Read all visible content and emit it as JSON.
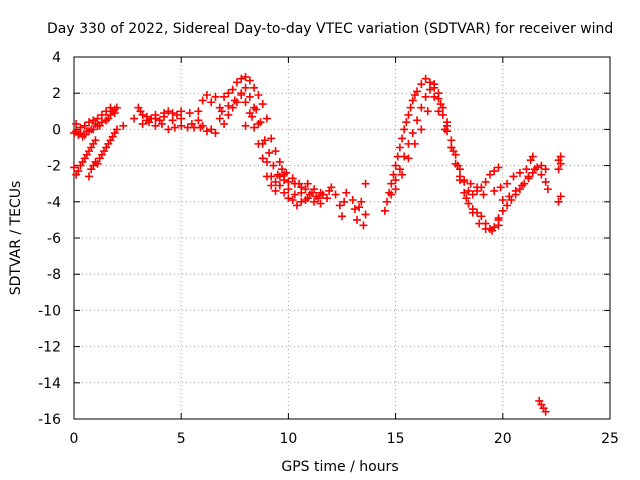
{
  "chart_data": {
    "type": "scatter",
    "title": "Day 330 of 2022, Sidereal Day-to-day VTEC variation (SDTVAR) for receiver wind",
    "xlabel": "GPS time / hours",
    "ylabel": "SDTVAR / TECUs",
    "xlim": [
      0,
      25
    ],
    "ylim": [
      -16,
      4
    ],
    "xticks": [
      0,
      5,
      10,
      15,
      20,
      25
    ],
    "yticks": [
      4,
      2,
      0,
      -2,
      -4,
      -6,
      -8,
      -10,
      -12,
      -14,
      -16
    ],
    "grid": true,
    "marker": "+",
    "series_color": "#ff0000",
    "series": [
      {
        "name": "SDTVAR",
        "points": [
          [
            0.0,
            -0.2
          ],
          [
            0.1,
            0.3
          ],
          [
            0.2,
            -0.3
          ],
          [
            0.3,
            0.1
          ],
          [
            0.4,
            -0.4
          ],
          [
            0.5,
            0.2
          ],
          [
            0.6,
            -0.1
          ],
          [
            0.7,
            0.4
          ],
          [
            0.8,
            0.0
          ],
          [
            0.9,
            0.5
          ],
          [
            1.0,
            0.3
          ],
          [
            1.1,
            0.6
          ],
          [
            1.2,
            0.2
          ],
          [
            1.3,
            0.8
          ],
          [
            1.5,
            1.0
          ],
          [
            1.6,
            0.6
          ],
          [
            1.7,
            1.2
          ],
          [
            1.8,
            1.0
          ],
          [
            1.9,
            0.9
          ],
          [
            2.0,
            1.2
          ],
          [
            0.1,
            -0.1
          ],
          [
            0.3,
            -0.2
          ],
          [
            0.5,
            -0.3
          ],
          [
            0.7,
            -0.1
          ],
          [
            0.9,
            0.0
          ],
          [
            1.1,
            0.2
          ],
          [
            1.3,
            0.4
          ],
          [
            1.5,
            0.5
          ],
          [
            1.7,
            0.8
          ],
          [
            1.9,
            1.1
          ],
          [
            0.0,
            -2.1
          ],
          [
            0.1,
            -2.5
          ],
          [
            0.2,
            -2.3
          ],
          [
            0.3,
            -2.0
          ],
          [
            0.4,
            -1.8
          ],
          [
            0.5,
            -1.6
          ],
          [
            0.6,
            -1.4
          ],
          [
            0.7,
            -1.2
          ],
          [
            0.8,
            -1.0
          ],
          [
            0.9,
            -0.8
          ],
          [
            1.0,
            -0.6
          ],
          [
            0.7,
            -2.6
          ],
          [
            0.8,
            -2.2
          ],
          [
            0.9,
            -2.0
          ],
          [
            1.0,
            -1.8
          ],
          [
            1.1,
            -1.9
          ],
          [
            1.2,
            -1.6
          ],
          [
            1.3,
            -1.4
          ],
          [
            1.4,
            -1.2
          ],
          [
            1.5,
            -1.0
          ],
          [
            1.6,
            -0.8
          ],
          [
            1.7,
            -0.6
          ],
          [
            1.8,
            -0.4
          ],
          [
            1.9,
            -0.2
          ],
          [
            2.0,
            0.0
          ],
          [
            2.3,
            0.2
          ],
          [
            2.8,
            0.6
          ],
          [
            3.0,
            1.2
          ],
          [
            3.1,
            1.0
          ],
          [
            3.2,
            0.8
          ],
          [
            3.4,
            0.5
          ],
          [
            3.6,
            0.6
          ],
          [
            3.8,
            0.8
          ],
          [
            4.0,
            0.5
          ],
          [
            4.2,
            0.9
          ],
          [
            4.4,
            1.0
          ],
          [
            4.6,
            0.9
          ],
          [
            4.8,
            0.8
          ],
          [
            5.0,
            1.0
          ],
          [
            3.2,
            0.3
          ],
          [
            3.5,
            0.4
          ],
          [
            3.8,
            0.2
          ],
          [
            4.1,
            0.3
          ],
          [
            4.4,
            0.0
          ],
          [
            4.7,
            0.1
          ],
          [
            5.0,
            0.2
          ],
          [
            5.3,
            0.1
          ],
          [
            5.6,
            0.1
          ],
          [
            5.9,
            0.1
          ],
          [
            3.4,
            0.7
          ],
          [
            3.8,
            0.6
          ],
          [
            4.2,
            0.7
          ],
          [
            4.6,
            0.5
          ],
          [
            5.0,
            0.6
          ],
          [
            5.4,
            0.9
          ],
          [
            5.8,
            1.0
          ],
          [
            6.0,
            1.6
          ],
          [
            6.2,
            1.9
          ],
          [
            6.4,
            1.5
          ],
          [
            6.6,
            1.8
          ],
          [
            6.8,
            1.2
          ],
          [
            6.9,
            1.0
          ],
          [
            5.5,
            0.3
          ],
          [
            5.8,
            0.5
          ],
          [
            6.0,
            0.2
          ],
          [
            6.2,
            -0.1
          ],
          [
            6.4,
            0.0
          ],
          [
            6.6,
            -0.2
          ],
          [
            7.0,
            1.8
          ],
          [
            7.2,
            2.0
          ],
          [
            7.4,
            2.2
          ],
          [
            7.6,
            2.6
          ],
          [
            7.8,
            2.8
          ],
          [
            8.0,
            2.9
          ],
          [
            8.2,
            2.7
          ],
          [
            8.4,
            2.3
          ],
          [
            8.6,
            1.9
          ],
          [
            8.8,
            1.4
          ],
          [
            9.0,
            0.6
          ],
          [
            9.2,
            -0.5
          ],
          [
            9.4,
            -1.2
          ],
          [
            9.6,
            -1.8
          ],
          [
            9.8,
            -2.5
          ],
          [
            10.0,
            -3.3
          ],
          [
            10.2,
            -3.9
          ],
          [
            10.4,
            -4.2
          ],
          [
            10.6,
            -4.0
          ],
          [
            10.8,
            -3.9
          ],
          [
            11.0,
            -3.6
          ],
          [
            11.3,
            -3.7
          ],
          [
            11.6,
            -3.6
          ],
          [
            11.9,
            -3.4
          ],
          [
            12.0,
            -3.2
          ],
          [
            7.2,
            1.3
          ],
          [
            7.5,
            1.6
          ],
          [
            7.8,
            1.9
          ],
          [
            8.0,
            2.3
          ],
          [
            8.2,
            1.8
          ],
          [
            8.4,
            1.2
          ],
          [
            8.6,
            0.3
          ],
          [
            8.8,
            -0.8
          ],
          [
            9.0,
            -1.8
          ],
          [
            9.2,
            -2.6
          ],
          [
            9.4,
            -2.9
          ],
          [
            9.6,
            -2.6
          ],
          [
            9.8,
            -2.8
          ],
          [
            10.0,
            -2.9
          ],
          [
            10.3,
            -3.0
          ],
          [
            10.6,
            -3.2
          ],
          [
            10.9,
            -3.0
          ],
          [
            11.2,
            -3.3
          ],
          [
            11.5,
            -3.5
          ],
          [
            11.8,
            -3.8
          ],
          [
            6.8,
            0.6
          ],
          [
            7.0,
            0.3
          ],
          [
            7.2,
            0.8
          ],
          [
            7.4,
            1.2
          ],
          [
            7.6,
            1.5
          ],
          [
            7.8,
            2.0
          ],
          [
            8.0,
            1.5
          ],
          [
            8.2,
            0.9
          ],
          [
            8.4,
            0.1
          ],
          [
            8.6,
            -0.8
          ],
          [
            8.8,
            -1.6
          ],
          [
            9.0,
            -2.6
          ],
          [
            9.2,
            -3.1
          ],
          [
            9.4,
            -3.4
          ],
          [
            9.6,
            -3.1
          ],
          [
            9.8,
            -3.5
          ],
          [
            10.0,
            -3.8
          ],
          [
            10.3,
            -3.6
          ],
          [
            10.6,
            -3.5
          ],
          [
            10.9,
            -3.8
          ],
          [
            11.2,
            -4.0
          ],
          [
            11.5,
            -4.1
          ],
          [
            8.0,
            0.2
          ],
          [
            8.3,
            0.7
          ],
          [
            8.5,
            1.1
          ],
          [
            8.7,
            0.4
          ],
          [
            8.9,
            -0.6
          ],
          [
            9.1,
            -1.3
          ],
          [
            9.3,
            -2.0
          ],
          [
            9.5,
            -2.5
          ],
          [
            9.7,
            -2.2
          ],
          [
            9.9,
            -2.4
          ],
          [
            10.2,
            -2.7
          ],
          [
            10.5,
            -3.0
          ],
          [
            10.8,
            -3.3
          ],
          [
            11.1,
            -3.5
          ],
          [
            11.4,
            -3.8
          ],
          [
            12.2,
            -3.6
          ],
          [
            12.4,
            -4.2
          ],
          [
            12.5,
            -4.8
          ],
          [
            12.6,
            -4.0
          ],
          [
            12.7,
            -3.5
          ],
          [
            13.0,
            -3.9
          ],
          [
            13.1,
            -4.4
          ],
          [
            13.2,
            -5.0
          ],
          [
            13.3,
            -4.3
          ],
          [
            13.4,
            -4.0
          ],
          [
            13.5,
            -5.3
          ],
          [
            13.6,
            -3.0
          ],
          [
            13.6,
            -4.7
          ],
          [
            14.5,
            -4.5
          ],
          [
            14.6,
            -4.0
          ],
          [
            14.7,
            -3.5
          ],
          [
            14.8,
            -3.0
          ],
          [
            14.9,
            -2.5
          ],
          [
            15.0,
            -2.0
          ],
          [
            15.1,
            -1.5
          ],
          [
            15.2,
            -1.0
          ],
          [
            15.3,
            -0.5
          ],
          [
            15.4,
            0.0
          ],
          [
            15.5,
            0.4
          ],
          [
            15.6,
            0.8
          ],
          [
            15.7,
            1.2
          ],
          [
            15.8,
            1.6
          ],
          [
            15.9,
            1.9
          ],
          [
            16.0,
            2.1
          ],
          [
            16.2,
            2.5
          ],
          [
            16.4,
            2.8
          ],
          [
            16.6,
            2.6
          ],
          [
            16.8,
            2.5
          ],
          [
            17.0,
            2.0
          ],
          [
            17.2,
            1.2
          ],
          [
            17.4,
            0.4
          ],
          [
            17.6,
            -0.6
          ],
          [
            17.8,
            -1.4
          ],
          [
            18.0,
            -2.2
          ],
          [
            18.2,
            -2.9
          ],
          [
            18.4,
            -3.4
          ],
          [
            18.6,
            -3.6
          ],
          [
            18.8,
            -3.4
          ],
          [
            19.0,
            -3.2
          ],
          [
            19.2,
            -2.9
          ],
          [
            19.4,
            -2.5
          ],
          [
            19.6,
            -2.3
          ],
          [
            19.8,
            -2.1
          ],
          [
            14.8,
            -3.6
          ],
          [
            15.0,
            -2.8
          ],
          [
            15.2,
            -2.2
          ],
          [
            15.4,
            -1.5
          ],
          [
            15.6,
            -0.8
          ],
          [
            15.8,
            -0.2
          ],
          [
            16.0,
            0.5
          ],
          [
            16.2,
            1.2
          ],
          [
            16.4,
            1.8
          ],
          [
            16.6,
            2.2
          ],
          [
            16.8,
            2.3
          ],
          [
            17.0,
            1.7
          ],
          [
            17.2,
            0.8
          ],
          [
            17.4,
            -0.1
          ],
          [
            17.6,
            -1.0
          ],
          [
            17.8,
            -1.9
          ],
          [
            18.0,
            -2.8
          ],
          [
            18.2,
            -3.5
          ],
          [
            18.4,
            -4.1
          ],
          [
            18.6,
            -4.4
          ],
          [
            18.8,
            -4.6
          ],
          [
            19.0,
            -4.8
          ],
          [
            19.2,
            -5.2
          ],
          [
            19.4,
            -5.5
          ],
          [
            19.6,
            -5.4
          ],
          [
            19.8,
            -5.0
          ],
          [
            15.0,
            -3.3
          ],
          [
            15.3,
            -2.5
          ],
          [
            15.6,
            -1.6
          ],
          [
            15.9,
            -0.8
          ],
          [
            16.2,
            0.0
          ],
          [
            16.5,
            1.0
          ],
          [
            16.8,
            1.8
          ],
          [
            17.1,
            1.4
          ],
          [
            17.4,
            0.2
          ],
          [
            17.7,
            -1.2
          ],
          [
            18.0,
            -2.6
          ],
          [
            18.3,
            -3.8
          ],
          [
            18.6,
            -4.6
          ],
          [
            18.9,
            -5.2
          ],
          [
            19.2,
            -5.5
          ],
          [
            19.5,
            -5.6
          ],
          [
            19.8,
            -5.3
          ],
          [
            17.0,
            1.0
          ],
          [
            17.3,
            0.0
          ],
          [
            17.6,
            -1.0
          ],
          [
            17.9,
            -2.0
          ],
          [
            18.2,
            -2.8
          ],
          [
            18.5,
            -3.0
          ],
          [
            18.8,
            -3.2
          ],
          [
            19.1,
            -3.6
          ],
          [
            19.8,
            -4.9
          ],
          [
            20.0,
            -4.5
          ],
          [
            20.2,
            -4.2
          ],
          [
            20.4,
            -3.9
          ],
          [
            20.6,
            -3.6
          ],
          [
            20.8,
            -3.3
          ],
          [
            21.0,
            -3.0
          ],
          [
            21.2,
            -2.7
          ],
          [
            21.4,
            -2.4
          ],
          [
            21.6,
            -2.1
          ],
          [
            21.8,
            -2.0
          ],
          [
            22.0,
            -2.2
          ],
          [
            20.0,
            -3.9
          ],
          [
            20.3,
            -3.7
          ],
          [
            20.6,
            -3.4
          ],
          [
            20.9,
            -3.1
          ],
          [
            21.2,
            -2.6
          ],
          [
            21.5,
            -2.2
          ],
          [
            21.8,
            -2.5
          ],
          [
            22.0,
            -2.9
          ],
          [
            22.1,
            -3.3
          ],
          [
            19.6,
            -3.4
          ],
          [
            19.9,
            -3.2
          ],
          [
            20.2,
            -3.0
          ],
          [
            20.5,
            -2.6
          ],
          [
            20.8,
            -2.4
          ],
          [
            21.1,
            -2.2
          ],
          [
            21.3,
            -1.7
          ],
          [
            21.4,
            -1.5
          ],
          [
            21.7,
            -15.0
          ],
          [
            21.8,
            -15.2
          ],
          [
            21.9,
            -15.4
          ],
          [
            22.0,
            -15.6
          ],
          [
            22.6,
            -1.7
          ],
          [
            22.7,
            -1.9
          ],
          [
            22.6,
            -2.2
          ],
          [
            22.7,
            -3.7
          ],
          [
            22.6,
            -4.0
          ],
          [
            22.7,
            -1.5
          ]
        ]
      }
    ]
  }
}
